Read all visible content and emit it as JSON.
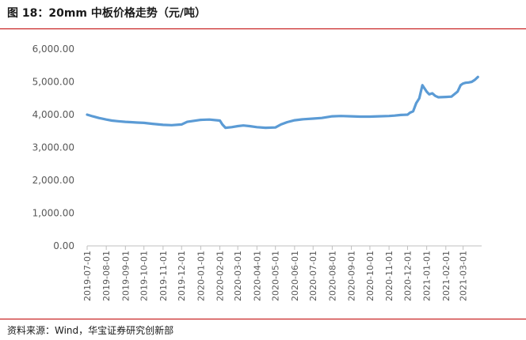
{
  "figure": {
    "title": "图 18：20mm 中板价格走势（元/吨）",
    "source": "资料来源：Wind，华宝证券研究创新部"
  },
  "colors": {
    "accent_rule": "#c00000",
    "series": "#5b9bd5",
    "axis": "#bfbfbf",
    "text": "#595959"
  },
  "chart_data": {
    "type": "line",
    "title": "",
    "xlabel": "",
    "ylabel": "",
    "ylim": [
      0,
      6000
    ],
    "y_ticks": [
      "0.00",
      "1,000.00",
      "2,000.00",
      "3,000.00",
      "4,000.00",
      "5,000.00",
      "6,000.00"
    ],
    "x_ticks": [
      "2019-07-01",
      "2019-08-01",
      "2019-09-01",
      "2019-10-01",
      "2019-11-01",
      "2019-12-01",
      "2020-01-01",
      "2020-02-01",
      "2020-03-01",
      "2020-04-01",
      "2020-05-01",
      "2020-06-01",
      "2020-07-01",
      "2020-08-01",
      "2020-09-01",
      "2020-10-01",
      "2020-11-01",
      "2020-12-01",
      "2021-01-01",
      "2021-02-01",
      "2021-03-01"
    ],
    "grid": false,
    "legend": "none",
    "series": [
      {
        "name": "",
        "x": [
          "2019-07-01",
          "2019-07-10",
          "2019-07-20",
          "2019-08-01",
          "2019-08-10",
          "2019-08-20",
          "2019-09-01",
          "2019-09-10",
          "2019-09-20",
          "2019-10-01",
          "2019-10-15",
          "2019-11-01",
          "2019-11-15",
          "2019-12-01",
          "2019-12-10",
          "2019-12-20",
          "2020-01-01",
          "2020-01-15",
          "2020-02-01",
          "2020-02-05",
          "2020-02-10",
          "2020-02-20",
          "2020-03-01",
          "2020-03-10",
          "2020-03-20",
          "2020-04-01",
          "2020-04-15",
          "2020-05-01",
          "2020-05-10",
          "2020-05-20",
          "2020-06-01",
          "2020-06-15",
          "2020-07-01",
          "2020-07-15",
          "2020-08-01",
          "2020-08-15",
          "2020-09-01",
          "2020-09-15",
          "2020-10-01",
          "2020-10-15",
          "2020-11-01",
          "2020-11-10",
          "2020-11-20",
          "2020-12-01",
          "2020-12-05",
          "2020-12-10",
          "2020-12-15",
          "2020-12-20",
          "2020-12-25",
          "2021-01-01",
          "2021-01-05",
          "2021-01-10",
          "2021-01-15",
          "2021-01-20",
          "2021-02-01",
          "2021-02-10",
          "2021-02-20",
          "2021-02-25",
          "2021-03-01",
          "2021-03-05",
          "2021-03-10",
          "2021-03-15",
          "2021-03-20",
          "2021-03-25"
        ],
        "values": [
          4000,
          3950,
          3900,
          3850,
          3820,
          3800,
          3780,
          3770,
          3760,
          3750,
          3720,
          3690,
          3680,
          3700,
          3780,
          3810,
          3840,
          3850,
          3820,
          3700,
          3600,
          3620,
          3650,
          3670,
          3650,
          3620,
          3600,
          3610,
          3700,
          3770,
          3830,
          3860,
          3880,
          3900,
          3950,
          3960,
          3950,
          3940,
          3940,
          3950,
          3960,
          3970,
          3990,
          4000,
          4060,
          4100,
          4350,
          4500,
          4900,
          4700,
          4620,
          4650,
          4570,
          4530,
          4540,
          4550,
          4700,
          4900,
          4950,
          4970,
          4980,
          5000,
          5060,
          5150
        ]
      }
    ]
  }
}
